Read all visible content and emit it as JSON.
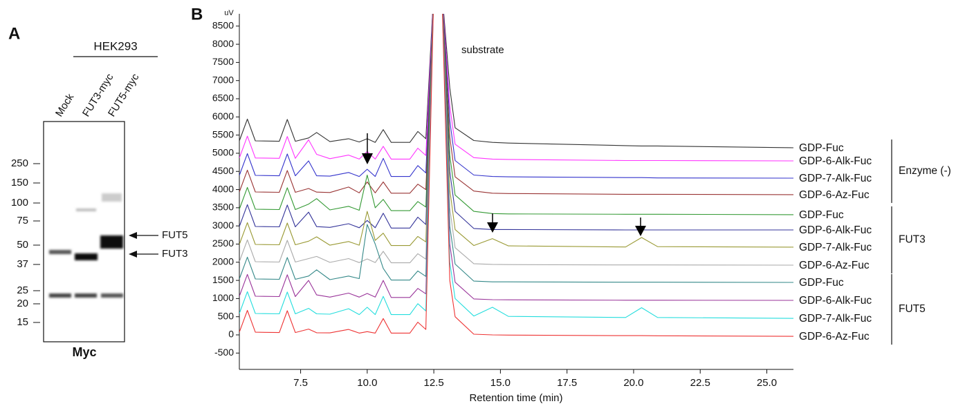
{
  "chart_data": {
    "type": "line",
    "panel_label": "B",
    "ylabel": "uV",
    "xlabel": "Retention time (min)",
    "annotations": [
      "substrate"
    ],
    "groups": [
      "Enzyme (-)",
      "FUT3",
      "FUT5"
    ],
    "xlim": [
      5.2,
      26.0
    ],
    "ylim": [
      -950,
      8800
    ],
    "xticks": [
      7.5,
      {
        "value": 10,
        "label": "10.0"
      },
      12.5,
      {
        "value": 15,
        "label": "15.0"
      },
      17.5,
      {
        "value": 20,
        "label": "20.0"
      },
      22.5,
      {
        "value": 25,
        "label": "25.0"
      }
    ],
    "yticks": [
      -500,
      0,
      500,
      1000,
      1500,
      2000,
      2500,
      3000,
      3500,
      4000,
      4500,
      5000,
      5500,
      6000,
      6500,
      7000,
      7500,
      8000,
      8500
    ],
    "x": [
      5.2,
      5.5,
      5.8,
      6.7,
      7.0,
      7.3,
      7.8,
      8.1,
      8.6,
      9.3,
      9.7,
      10.0,
      10.3,
      10.6,
      10.9,
      11.6,
      11.9,
      12.2,
      12.5,
      12.8,
      13.1,
      13.3,
      14.0,
      14.7,
      15.3,
      19.7,
      20.3,
      20.9,
      26.0
    ],
    "series": [
      {
        "name": "GDP-Fuc",
        "color": "#333333",
        "values": [
          5340,
          5940,
          5340,
          5330,
          5930,
          5330,
          5420,
          5570,
          5320,
          5400,
          5310,
          5400,
          5300,
          5650,
          5300,
          5300,
          5600,
          5400,
          9500,
          9500,
          6800,
          5700,
          5350,
          5300,
          5280,
          5210,
          5200,
          5200,
          5150
        ]
      },
      {
        "name": "GDP-6-Alk-Fuc",
        "color": "#ff33ff",
        "values": [
          4870,
          5470,
          4870,
          4860,
          5460,
          4860,
          5370,
          4970,
          4850,
          4950,
          4840,
          5050,
          4840,
          5190,
          4840,
          4840,
          5140,
          4940,
          9500,
          9500,
          6300,
          5250,
          4880,
          4840,
          4830,
          4800,
          4800,
          4800,
          4790
        ]
      },
      {
        "name": "GDP-7-Alk-Fuc",
        "color": "#3333cc",
        "values": [
          4390,
          4990,
          4390,
          4380,
          4980,
          4380,
          4790,
          4380,
          4370,
          4470,
          4360,
          4560,
          4360,
          4860,
          4360,
          4360,
          4660,
          4460,
          9500,
          9500,
          5900,
          4800,
          4400,
          4360,
          4350,
          4330,
          4330,
          4320,
          4315
        ]
      },
      {
        "name": "GDP-6-Az-Fuc",
        "color": "#993333",
        "values": [
          3935,
          4535,
          3935,
          3925,
          4525,
          3925,
          4030,
          3930,
          3920,
          4070,
          3910,
          4210,
          3910,
          4210,
          3900,
          3900,
          4150,
          4000,
          9500,
          9500,
          5450,
          4350,
          3960,
          3900,
          3890,
          3870,
          3870,
          3870,
          3860
        ]
      },
      {
        "name": "GDP-Fuc",
        "color": "#339933",
        "values": [
          3460,
          4060,
          3460,
          3450,
          4050,
          3450,
          3600,
          3750,
          3440,
          3540,
          3430,
          4400,
          3500,
          3730,
          3420,
          3420,
          3670,
          3520,
          9500,
          9500,
          4950,
          3850,
          3400,
          3340,
          3330,
          3320,
          3320,
          3320,
          3310
        ]
      },
      {
        "name": "GDP-6-Alk-Fuc",
        "color": "#333399",
        "values": [
          2985,
          3585,
          2985,
          2975,
          3575,
          2975,
          3380,
          2980,
          2960,
          3060,
          2950,
          3150,
          2950,
          3350,
          2940,
          2940,
          3240,
          3040,
          9500,
          9500,
          4500,
          3400,
          2930,
          2900,
          2900,
          2890,
          2890,
          2890,
          2890
        ]
      },
      {
        "name": "GDP-7-Alk-Fuc",
        "color": "#999933",
        "values": [
          2490,
          3090,
          2490,
          2480,
          3080,
          2480,
          2580,
          2700,
          2470,
          2570,
          2470,
          3400,
          2600,
          2800,
          2460,
          2460,
          2710,
          2560,
          9500,
          9500,
          4000,
          2900,
          2460,
          2650,
          2450,
          2420,
          2680,
          2430,
          2415
        ]
      },
      {
        "name": "GDP-6-Az-Fuc",
        "color": "#aaaaaa",
        "values": [
          2015,
          2615,
          2015,
          2005,
          2605,
          2005,
          2100,
          2160,
          1995,
          2100,
          1990,
          2090,
          1990,
          2300,
          1985,
          1985,
          2235,
          2085,
          9500,
          9500,
          3500,
          2400,
          1960,
          1940,
          1935,
          1925,
          1925,
          1925,
          1920
        ]
      },
      {
        "name": "GDP-Fuc",
        "color": "#338888",
        "values": [
          1540,
          2140,
          1540,
          1530,
          2130,
          1530,
          1620,
          1790,
          1520,
          1620,
          1550,
          3040,
          2500,
          1830,
          1510,
          1510,
          1760,
          1610,
          9500,
          9500,
          3000,
          1950,
          1480,
          1460,
          1460,
          1450,
          1450,
          1450,
          1445
        ]
      },
      {
        "name": "GDP-6-Alk-Fuc",
        "color": "#993399",
        "values": [
          1065,
          1665,
          1065,
          1055,
          1655,
          1055,
          1500,
          1100,
          1040,
          1150,
          1040,
          1140,
          1040,
          1500,
          1030,
          1030,
          1280,
          1130,
          9500,
          9500,
          2500,
          1450,
          990,
          970,
          965,
          955,
          955,
          955,
          950
        ]
      },
      {
        "name": "GDP-7-Alk-Fuc",
        "color": "#22dddd",
        "values": [
          590,
          1190,
          590,
          580,
          1180,
          580,
          730,
          580,
          570,
          720,
          560,
          760,
          560,
          1060,
          560,
          560,
          860,
          660,
          9500,
          9500,
          2000,
          1000,
          520,
          760,
          510,
          480,
          750,
          480,
          455
        ]
      },
      {
        "name": "GDP-6-Az-Fuc",
        "color": "#ee3333",
        "values": [
          75,
          675,
          75,
          65,
          665,
          65,
          160,
          60,
          55,
          150,
          50,
          90,
          50,
          450,
          50,
          50,
          350,
          150,
          9500,
          9500,
          1500,
          500,
          20,
          0,
          -5,
          -20,
          -20,
          -25,
          -40
        ]
      }
    ]
  },
  "blot": {
    "panel_label": "A",
    "cell_line": "HEK293",
    "lanes": [
      "Mock",
      "FUT3-myc",
      "FUT5-myc"
    ],
    "markers": [
      "250",
      "150",
      "100",
      "75",
      "50",
      "37",
      "25",
      "20",
      "15"
    ],
    "band_labels": [
      "FUT5",
      "FUT3"
    ],
    "antibody": "Myc"
  }
}
